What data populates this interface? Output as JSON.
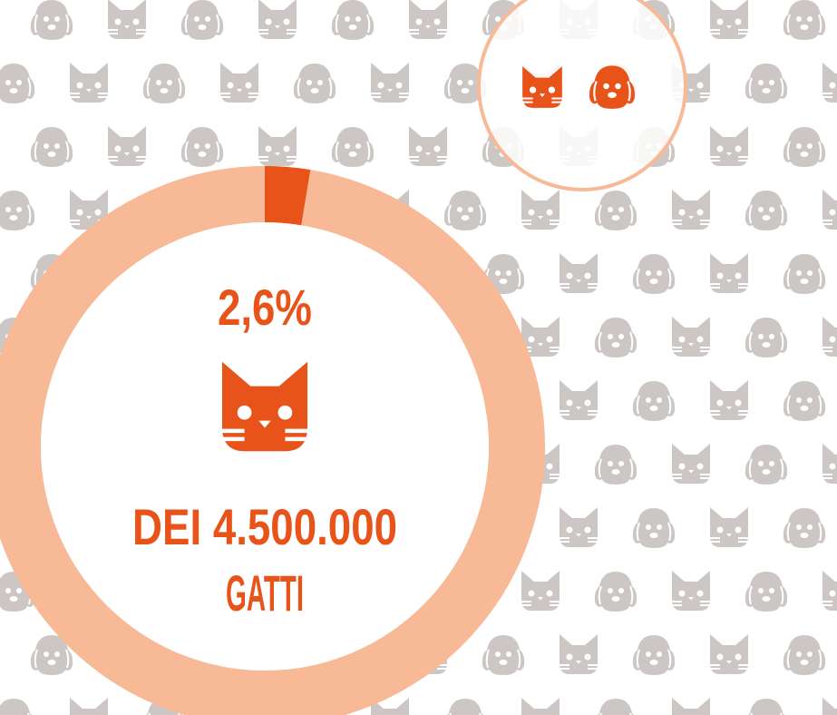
{
  "chart_data": {
    "type": "donut",
    "values": [
      2.6
    ],
    "value_labels": [
      "2,6%"
    ],
    "colors": [
      "#e8531a"
    ],
    "track_color": "#f8b996",
    "annotation_lines": [
      "DEI 4.500.000",
      "GATTI"
    ]
  }
}
